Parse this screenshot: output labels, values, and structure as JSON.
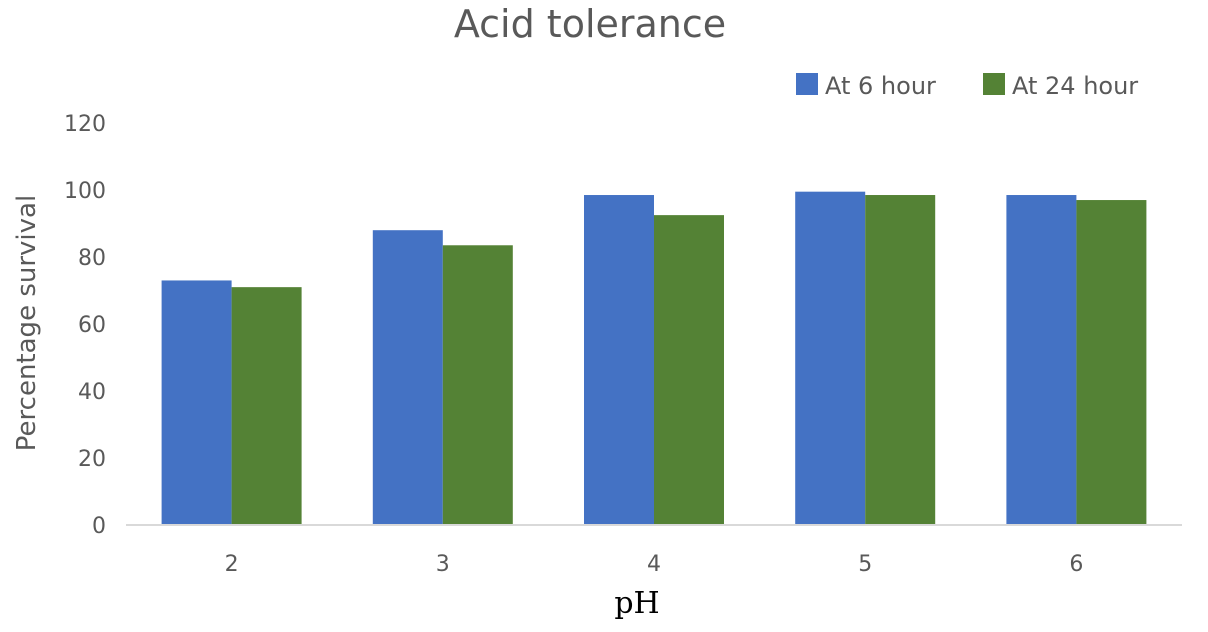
{
  "chart_data": {
    "type": "bar",
    "title": "Acid tolerance",
    "xlabel": "pH",
    "ylabel": "Percentage survival",
    "categories": [
      "2",
      "3",
      "4",
      "5",
      "6"
    ],
    "series": [
      {
        "name": "At 6 hour",
        "color": "#4472C4",
        "values": [
          73,
          88,
          98.5,
          99.5,
          98.5
        ]
      },
      {
        "name": "At 24 hour",
        "color": "#548235",
        "values": [
          71,
          83.5,
          92.5,
          98.5,
          97
        ]
      }
    ],
    "ylim": [
      0,
      120
    ],
    "yticks": [
      "0",
      "20",
      "40",
      "60",
      "80",
      "100",
      "120"
    ],
    "grid": false,
    "legend_position": "top-right"
  }
}
